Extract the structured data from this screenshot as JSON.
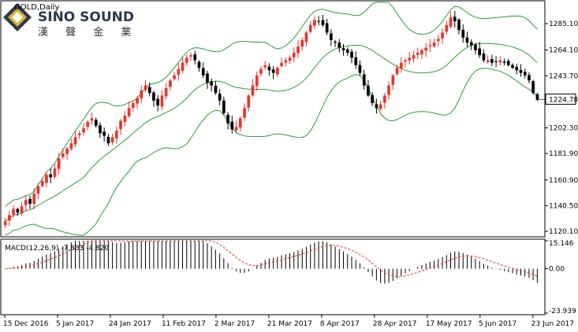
{
  "symbol_label": "GOLD,Daily",
  "logo": {
    "text_en": "SINO SOUND",
    "text_cn": "漢 聲 金 業",
    "colors": [
      "#2e3a4a",
      "#d8b23a",
      "#6b6b6b"
    ]
  },
  "colors": {
    "background": "#ffffff",
    "frame": "#000000",
    "bullish_candle": "#e8352b",
    "bearish_candle": "#000000",
    "bollinger": "#2a9d3a",
    "macd_hist": "#000000",
    "macd_signal": "#e8352b",
    "price_tag_bg": "#ffffff"
  },
  "chart_data": [
    {
      "type": "candlestick",
      "title": "GOLD,Daily",
      "indicators": [
        "Bollinger Bands"
      ],
      "x_tick_labels": [
        "15 Dec 2016",
        "5 Jan 2017",
        "24 Jan 2017",
        "11 Feb 2017",
        "2 Mar 2017",
        "21 Mar 2017",
        "8 Apr 2017",
        "28 Apr 2017",
        "17 May 2017",
        "5 Jun 2017",
        "23 Jun 2017"
      ],
      "y_tick_labels": [
        "1285.10",
        "1264.10",
        "1243.70",
        "1224.78",
        "1202.30",
        "1181.90",
        "1160.90",
        "1140.50",
        "1120.10"
      ],
      "ylim": [
        1117,
        1302
      ],
      "current_price": 1224.78,
      "close_series": [
        1128,
        1133,
        1138,
        1135,
        1140,
        1145,
        1142,
        1150,
        1156,
        1160,
        1165,
        1163,
        1170,
        1178,
        1182,
        1186,
        1190,
        1195,
        1198,
        1202,
        1207,
        1210,
        1204,
        1198,
        1196,
        1190,
        1195,
        1200,
        1208,
        1212,
        1218,
        1222,
        1226,
        1232,
        1236,
        1230,
        1224,
        1220,
        1228,
        1234,
        1240,
        1244,
        1249,
        1254,
        1258,
        1260,
        1256,
        1250,
        1244,
        1238,
        1236,
        1230,
        1224,
        1214,
        1206,
        1201,
        1203,
        1210,
        1218,
        1228,
        1236,
        1244,
        1249,
        1252,
        1248,
        1246,
        1250,
        1254,
        1256,
        1258,
        1262,
        1267,
        1272,
        1278,
        1284,
        1288,
        1287,
        1284,
        1278,
        1272,
        1270,
        1266,
        1264,
        1262,
        1258,
        1252,
        1246,
        1236,
        1228,
        1222,
        1218,
        1221,
        1228,
        1236,
        1244,
        1250,
        1254,
        1256,
        1258,
        1260,
        1262,
        1264,
        1266,
        1268,
        1270,
        1273,
        1278,
        1284,
        1290,
        1287,
        1280,
        1274,
        1270,
        1268,
        1264,
        1260,
        1256,
        1256,
        1254,
        1255,
        1256,
        1254,
        1252,
        1250,
        1248,
        1246,
        1244,
        1240,
        1230,
        1224.78
      ]
    },
    {
      "type": "macd",
      "title": "MACD(12,26,9) -7.803 -4.820",
      "params": [
        12,
        26,
        9
      ],
      "macd_value": -7.803,
      "signal_value": -4.82,
      "y_tick_labels": [
        "15.146",
        "0.00",
        "-23.939"
      ],
      "ylim": [
        -23.939,
        15.146
      ]
    }
  ]
}
